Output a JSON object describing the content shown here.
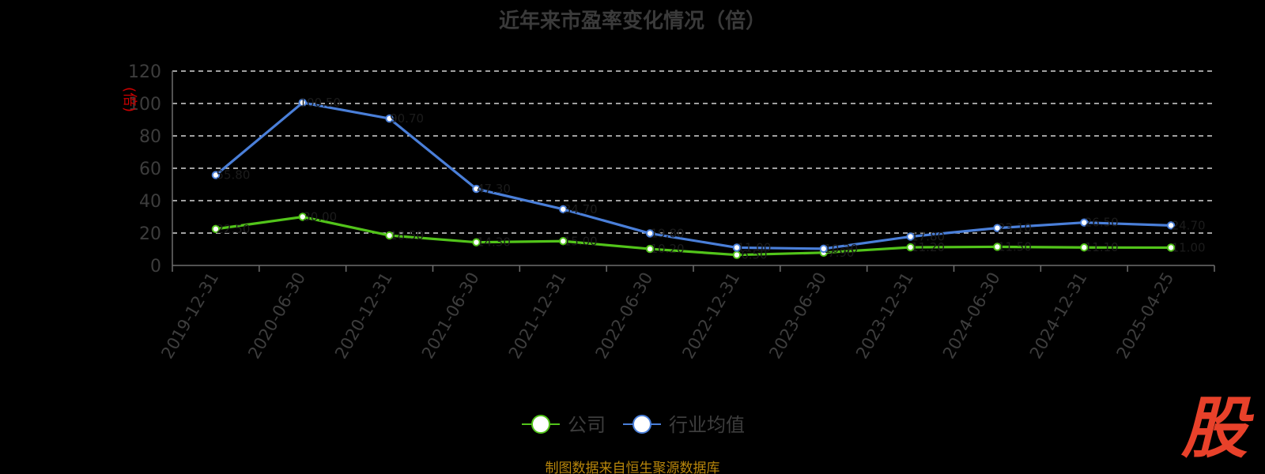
{
  "chart_data": {
    "type": "line",
    "title": "近年来市盈率变化情况（倍）",
    "ylabel": "(倍)",
    "xlabel": "",
    "ylim": [
      0,
      120
    ],
    "yticks": [
      "0",
      "20",
      "40",
      "60",
      "80",
      "100",
      "120"
    ],
    "grid": true,
    "categories": [
      "2019-12-31",
      "2020-06-30",
      "2020-12-31",
      "2021-06-30",
      "2021-12-31",
      "2022-06-30",
      "2022-12-31",
      "2023-06-30",
      "2023-12-31",
      "2024-06-30",
      "2024-12-31",
      "2025-04-25"
    ],
    "series": [
      {
        "name": "公司",
        "color": "#52c41a",
        "values": [
          22.5,
          30.0,
          18.5,
          14.3,
          15.0,
          10.2,
          6.5,
          7.9,
          11.2,
          11.5,
          11.1,
          11.0
        ]
      },
      {
        "name": "行业均值",
        "color": "#4a7fd9",
        "values": [
          55.8,
          100.5,
          90.7,
          47.3,
          34.7,
          19.8,
          11.0,
          10.3,
          17.8,
          23.1,
          26.5,
          24.7
        ]
      }
    ],
    "legend_position": "bottom-center"
  },
  "source_note": "制图数据来自恒生聚源数据库",
  "logo_text": "股",
  "colors": {
    "background": "#000000",
    "axis": "#6e6e6e",
    "grid": "#ffffff",
    "tick_text": "#3d3d3d",
    "ylabel": "#cc0000",
    "source": "#b8860b",
    "logo": "#e8412a"
  }
}
